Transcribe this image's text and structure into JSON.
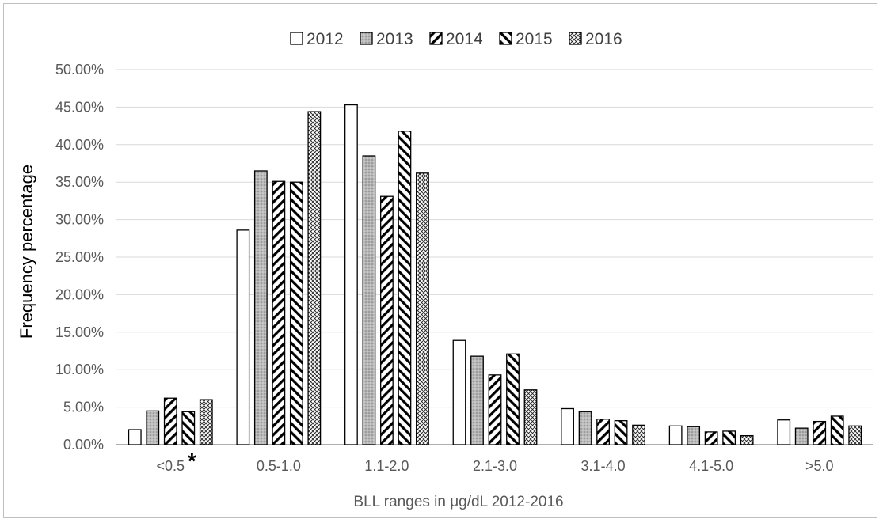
{
  "chart_data": {
    "type": "bar",
    "xlabel": "BLL ranges in μg/dL 2012-2016",
    "ylabel": "Frequency percentage",
    "ylim": [
      0,
      0.5
    ],
    "yticks": [
      "0.00%",
      "5.00%",
      "10.00%",
      "15.00%",
      "20.00%",
      "25.00%",
      "30.00%",
      "35.00%",
      "40.00%",
      "45.00%",
      "50.00%"
    ],
    "grid": true,
    "legend_position": "top",
    "categories": [
      "<0.5",
      "0.5-1.0",
      "1.1-2.0",
      "2.1-3.0",
      "3.1-4.0",
      "4.1-5.0",
      ">5.0"
    ],
    "annotations": [
      {
        "category": "<0.5",
        "text": "*"
      }
    ],
    "series": [
      {
        "name": "2012",
        "pattern": "solid-white",
        "values": [
          0.02,
          0.286,
          0.453,
          0.139,
          0.048,
          0.025,
          0.033
        ]
      },
      {
        "name": "2013",
        "pattern": "dotted-gray",
        "values": [
          0.045,
          0.365,
          0.385,
          0.118,
          0.044,
          0.024,
          0.022
        ]
      },
      {
        "name": "2014",
        "pattern": "forward-diagonal",
        "values": [
          0.062,
          0.351,
          0.331,
          0.093,
          0.034,
          0.017,
          0.031
        ]
      },
      {
        "name": "2015",
        "pattern": "backward-diagonal",
        "values": [
          0.044,
          0.35,
          0.418,
          0.121,
          0.032,
          0.018,
          0.038
        ]
      },
      {
        "name": "2016",
        "pattern": "crosshatch",
        "values": [
          0.06,
          0.444,
          0.362,
          0.073,
          0.026,
          0.012,
          0.025
        ]
      }
    ]
  }
}
